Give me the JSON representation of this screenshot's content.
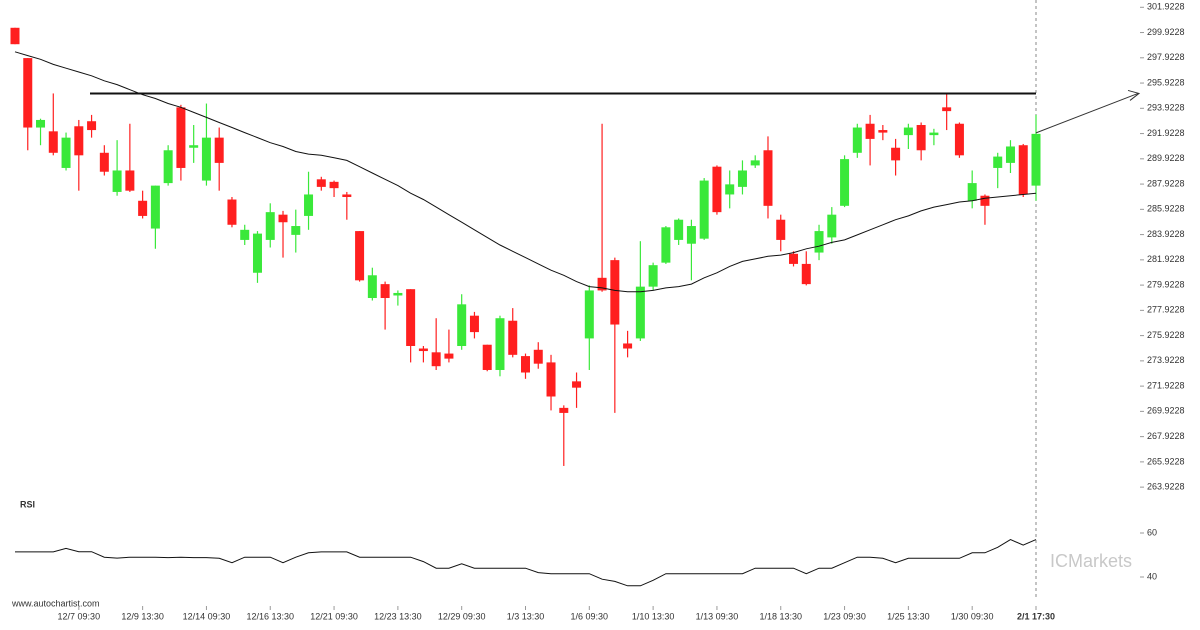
{
  "chart_data": {
    "type": "candlestick",
    "categories": [
      null,
      null,
      null,
      null,
      null,
      "12/7 09:30",
      null,
      null,
      null,
      null,
      "12/9 13:30",
      null,
      null,
      null,
      null,
      "12/14 09:30",
      null,
      null,
      null,
      null,
      "12/16 13:30",
      null,
      null,
      null,
      null,
      "12/21 09:30",
      null,
      null,
      null,
      null,
      "12/23 13:30",
      null,
      null,
      null,
      null,
      "12/29 09:30",
      null,
      null,
      null,
      null,
      "1/3 13:30",
      null,
      null,
      null,
      null,
      "1/6 09:30",
      null,
      null,
      null,
      null,
      "1/10 13:30",
      null,
      null,
      null,
      null,
      "1/13 09:30",
      null,
      null,
      null,
      null,
      "1/18 13:30",
      null,
      null,
      null,
      null,
      "1/23 09:30",
      null,
      null,
      null,
      null,
      "1/25 13:30",
      null,
      null,
      null,
      null,
      "1/30 09:30",
      null,
      null,
      null,
      null,
      "2/1 17:30"
    ],
    "open": [
      300.3,
      297.9,
      292.4,
      292.1,
      289.2,
      292.5,
      292.9,
      290.4,
      287.3,
      289.0,
      286.6,
      284.4,
      288.0,
      294.0,
      290.8,
      288.2,
      291.6,
      286.7,
      283.5,
      280.9,
      283.5,
      285.5,
      283.9,
      285.4,
      288.3,
      288.1,
      287.1,
      284.2,
      278.9,
      280.0,
      279.1,
      279.6,
      274.9,
      274.6,
      274.5,
      275.1,
      277.5,
      275.2,
      273.2,
      277.1,
      274.3,
      274.8,
      273.8,
      270.2,
      272.3,
      275.7,
      280.5,
      281.9,
      275.3,
      275.7,
      279.8,
      281.7,
      283.5,
      283.2,
      283.6,
      289.3,
      287.1,
      287.7,
      289.4,
      290.6,
      285.1,
      282.4,
      281.6,
      282.5,
      283.7,
      286.2,
      290.4,
      292.7,
      292.2,
      290.8,
      291.8,
      292.6,
      291.8,
      294.0,
      292.7,
      286.6,
      287.0,
      289.2,
      289.6,
      291.0,
      287.8
    ],
    "high": [
      300.3,
      297.9,
      293.1,
      295.1,
      292.0,
      293.0,
      293.4,
      291.0,
      291.4,
      292.7,
      287.4,
      287.8,
      291.0,
      294.2,
      292.6,
      294.3,
      292.4,
      286.9,
      284.7,
      284.2,
      286.4,
      285.8,
      285.9,
      288.9,
      288.5,
      288.2,
      287.3,
      284.2,
      281.3,
      280.2,
      279.5,
      279.6,
      275.1,
      277.3,
      276.4,
      279.2,
      277.8,
      275.2,
      277.5,
      278.1,
      274.5,
      275.4,
      274.4,
      270.4,
      273.0,
      279.9,
      292.7,
      282.1,
      276.3,
      283.4,
      281.7,
      284.6,
      285.2,
      285.1,
      288.4,
      289.4,
      289.0,
      289.8,
      290.2,
      291.7,
      285.5,
      282.6,
      282.6,
      284.7,
      286.1,
      290.2,
      292.7,
      293.4,
      292.6,
      291.5,
      292.7,
      292.8,
      292.3,
      295.1,
      292.8,
      289.0,
      287.1,
      290.4,
      291.4,
      291.1,
      293.4
    ],
    "low": [
      299.0,
      290.6,
      291.0,
      290.2,
      289.0,
      287.4,
      291.6,
      288.6,
      287.0,
      287.3,
      285.2,
      282.8,
      287.8,
      288.2,
      289.6,
      287.8,
      287.4,
      284.5,
      283.1,
      280.1,
      282.9,
      282.1,
      282.5,
      284.3,
      287.4,
      286.9,
      285.1,
      280.2,
      278.7,
      276.4,
      278.3,
      273.8,
      273.8,
      273.2,
      273.8,
      274.8,
      275.7,
      273.1,
      272.7,
      274.2,
      272.5,
      273.3,
      270.0,
      265.6,
      270.2,
      273.2,
      279.4,
      269.8,
      274.2,
      275.5,
      279.5,
      281.6,
      283.1,
      280.3,
      283.5,
      285.5,
      286.0,
      287.1,
      289.2,
      285.2,
      282.6,
      281.4,
      279.9,
      281.9,
      283.2,
      286.1,
      290.0,
      289.4,
      291.4,
      288.6,
      290.7,
      289.8,
      291.0,
      292.2,
      290.0,
      286.0,
      284.7,
      287.6,
      288.8,
      286.9,
      286.6
    ],
    "close": [
      299.0,
      292.4,
      293.0,
      290.4,
      291.6,
      290.2,
      292.2,
      288.9,
      289.0,
      287.4,
      285.4,
      287.8,
      290.6,
      289.2,
      291.0,
      291.6,
      289.6,
      284.7,
      284.3,
      284.0,
      285.7,
      284.9,
      284.6,
      287.1,
      287.7,
      287.6,
      286.9,
      280.3,
      280.7,
      278.9,
      279.3,
      275.1,
      274.7,
      273.5,
      274.1,
      278.4,
      276.2,
      273.2,
      277.3,
      274.4,
      273.0,
      273.7,
      271.1,
      269.8,
      271.8,
      279.5,
      279.5,
      276.8,
      274.9,
      279.8,
      281.5,
      284.5,
      285.1,
      284.6,
      288.2,
      285.7,
      287.9,
      289.0,
      289.8,
      286.2,
      283.5,
      281.6,
      280.0,
      284.2,
      285.5,
      289.9,
      292.4,
      291.5,
      292.0,
      289.8,
      292.4,
      290.6,
      292.0,
      293.7,
      290.2,
      288.0,
      286.2,
      290.1,
      290.9,
      287.1,
      291.9
    ],
    "moving_average": [
      298.4,
      298.1,
      297.8,
      297.4,
      297.1,
      296.8,
      296.5,
      296.1,
      295.8,
      295.4,
      295.0,
      294.7,
      294.3,
      294.0,
      293.6,
      293.2,
      292.8,
      292.4,
      292.0,
      291.6,
      291.2,
      290.9,
      290.5,
      290.3,
      290.2,
      290.0,
      289.8,
      289.3,
      288.8,
      288.3,
      287.8,
      287.2,
      286.7,
      286.1,
      285.5,
      284.9,
      284.3,
      283.7,
      283.1,
      282.6,
      282.1,
      281.6,
      281.1,
      280.7,
      280.2,
      279.8,
      279.7,
      279.5,
      279.4,
      279.4,
      279.5,
      279.7,
      279.8,
      280.0,
      280.5,
      280.9,
      281.4,
      281.8,
      282.0,
      282.2,
      282.3,
      282.5,
      282.8,
      283.0,
      283.3,
      283.5,
      283.9,
      284.3,
      284.7,
      285.1,
      285.4,
      285.8,
      286.1,
      286.3,
      286.5,
      286.6,
      286.8,
      286.9,
      287.0,
      287.1,
      287.2
    ],
    "resistance": 295.1,
    "up_color": "#3ae83a",
    "down_color": "#ff1f1f",
    "ylim": [
      263.3,
      302.5
    ],
    "yticks": [
      301.9228,
      299.9228,
      297.9228,
      295.9228,
      293.9228,
      291.9228,
      289.9228,
      287.9228,
      285.9228,
      283.9228,
      281.9228,
      279.9228,
      277.9228,
      275.9228,
      273.9228,
      271.9228,
      269.9228,
      267.9228,
      265.9228,
      263.9228
    ],
    "rsi": {
      "label": "RSI",
      "values": [
        51.4,
        51.4,
        51.4,
        51.4,
        53.0,
        51.5,
        51.5,
        49.0,
        48.6,
        49,
        49,
        49,
        48.8,
        49,
        48.8,
        48.8,
        48.5,
        46.5,
        49,
        49,
        49,
        46.5,
        49,
        51,
        51.4,
        51.4,
        51.4,
        49,
        49,
        49,
        49,
        49,
        47,
        44,
        44,
        46,
        44,
        44,
        44,
        44,
        44,
        42,
        41.5,
        41.5,
        41.5,
        41.5,
        39,
        38,
        36,
        36,
        38.5,
        41.5,
        41.5,
        41.5,
        41.5,
        41.5,
        41.5,
        41.5,
        44,
        44,
        44,
        44,
        41.5,
        44,
        44,
        46.5,
        49,
        49,
        48.5,
        46.5,
        48.5,
        48.5,
        48.5,
        48.5,
        48.5,
        51,
        51,
        53.5,
        57,
        54.5,
        57
      ],
      "ylim": [
        30,
        72
      ],
      "yticks": [
        60,
        40
      ]
    },
    "watermark": "ICMarkets",
    "source": "www.autochartist.com"
  }
}
